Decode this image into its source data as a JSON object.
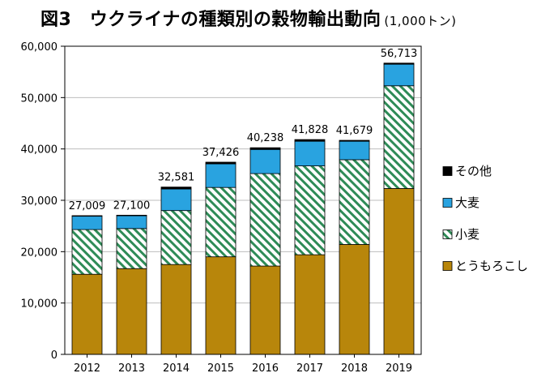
{
  "title": "図3　ウクライナの種類別の穀物輸出動向",
  "unit": "(1,000トン)",
  "chart_data": {
    "type": "bar",
    "stacked": true,
    "categories": [
      "2012",
      "2013",
      "2014",
      "2015",
      "2016",
      "2017",
      "2018",
      "2019"
    ],
    "series": [
      {
        "name": "とうもろこし",
        "color": "#b8860b",
        "pattern": "solid",
        "values": [
          15600,
          16700,
          17500,
          19000,
          17200,
          19400,
          21400,
          32300
        ]
      },
      {
        "name": "小麦",
        "color": "#2e8b57",
        "pattern": "diagonal-stripes",
        "values": [
          8700,
          7800,
          10500,
          13500,
          18000,
          17300,
          16500,
          20000
        ]
      },
      {
        "name": "大麦",
        "color": "#29a3e0",
        "pattern": "solid",
        "values": [
          2600,
          2500,
          4200,
          4600,
          4700,
          4800,
          3600,
          4200
        ]
      },
      {
        "name": "その他",
        "color": "#000000",
        "pattern": "solid",
        "values": [
          109,
          100,
          381,
          326,
          338,
          328,
          179,
          213
        ]
      }
    ],
    "totals": [
      "27,009",
      "27,100",
      "32,581",
      "37,426",
      "40,238",
      "41,828",
      "41,679",
      "56,713"
    ],
    "ylim": [
      0,
      60000
    ],
    "yticks": [
      "0",
      "10,000",
      "20,000",
      "30,000",
      "40,000",
      "50,000",
      "60,000"
    ],
    "ytick_values": [
      0,
      10000,
      20000,
      30000,
      40000,
      50000,
      60000
    ],
    "grid": true,
    "legend_position": "right",
    "legend_order": [
      "その他",
      "大麦",
      "小麦",
      "とうもろこし"
    ]
  }
}
